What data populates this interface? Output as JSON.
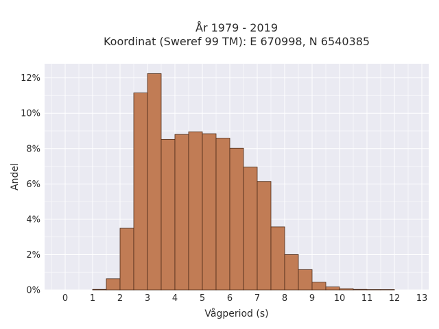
{
  "chart_data": {
    "type": "bar",
    "title_line1": "År 1979 - 2019",
    "title_line2": "Koordinat (Sweref 99 TM): E 670998, N 6540385",
    "xlabel": "Vågperiod (s)",
    "ylabel": "Andel",
    "xlim": [
      -0.75,
      13.25
    ],
    "ylim": [
      0,
      12.8
    ],
    "x_ticks": [
      "0",
      "1",
      "2",
      "3",
      "4",
      "5",
      "6",
      "7",
      "8",
      "9",
      "10",
      "11",
      "12",
      "13"
    ],
    "y_ticks": [
      "0%",
      "2%",
      "4%",
      "6%",
      "8%",
      "10%",
      "12%"
    ],
    "bin_width": 0.5,
    "bins": [
      {
        "x0": 1.0,
        "value": 0.03
      },
      {
        "x0": 1.5,
        "value": 0.63
      },
      {
        "x0": 2.0,
        "value": 3.49
      },
      {
        "x0": 2.5,
        "value": 11.15
      },
      {
        "x0": 3.0,
        "value": 12.24
      },
      {
        "x0": 3.5,
        "value": 8.52
      },
      {
        "x0": 4.0,
        "value": 8.8
      },
      {
        "x0": 4.5,
        "value": 8.95
      },
      {
        "x0": 5.0,
        "value": 8.84
      },
      {
        "x0": 5.5,
        "value": 8.59
      },
      {
        "x0": 6.0,
        "value": 8.02
      },
      {
        "x0": 6.5,
        "value": 6.95
      },
      {
        "x0": 7.0,
        "value": 6.14
      },
      {
        "x0": 7.5,
        "value": 3.57
      },
      {
        "x0": 8.0,
        "value": 2.0
      },
      {
        "x0": 8.5,
        "value": 1.15
      },
      {
        "x0": 9.0,
        "value": 0.44
      },
      {
        "x0": 9.5,
        "value": 0.17
      },
      {
        "x0": 10.0,
        "value": 0.07
      },
      {
        "x0": 10.5,
        "value": 0.03
      },
      {
        "x0": 11.0,
        "value": 0.02
      },
      {
        "x0": 11.5,
        "value": 0.02
      }
    ],
    "grid": true,
    "colors": {
      "bar_fill": "#c17c55",
      "bar_edge": "#4a2a18",
      "plot_bg": "#eaeaf2"
    }
  }
}
